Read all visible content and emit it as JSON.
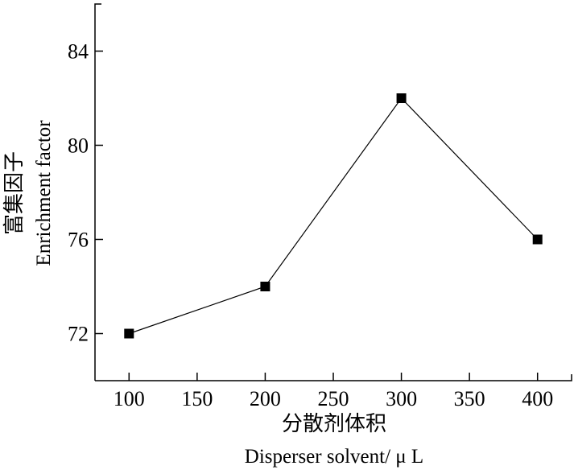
{
  "chart_data": {
    "type": "line",
    "title": "",
    "xlabel_cn": "分散剂体积",
    "xlabel_en": "Disperser solvent/ μ L",
    "ylabel_cn": "富集因子",
    "ylabel_en": "Enrichment factor",
    "x": [
      100,
      200,
      300,
      400
    ],
    "series": [
      {
        "values": [
          72,
          74,
          82,
          76
        ]
      }
    ],
    "xlim": [
      75,
      425
    ],
    "ylim": [
      70,
      86
    ],
    "xticks": [
      100,
      150,
      200,
      250,
      300,
      350,
      400
    ],
    "yticks": [
      72,
      76,
      80,
      84
    ],
    "xtick_labels": [
      "100",
      "150",
      "200",
      "250",
      "300",
      "350",
      "400"
    ],
    "ytick_labels": [
      "72",
      "76",
      "80",
      "84"
    ],
    "marker": "square",
    "grid": false,
    "line_color": "#000000"
  }
}
